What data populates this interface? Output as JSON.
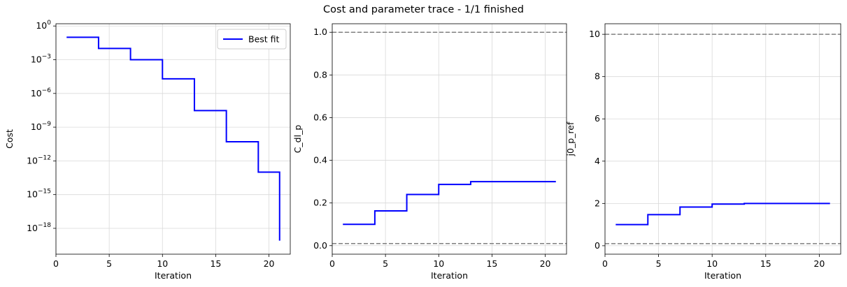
{
  "suptitle": "Cost and parameter trace - 1/1 finished",
  "chart_data": [
    {
      "type": "line",
      "line_shape": "step",
      "title": "",
      "xlabel": "Iteration",
      "ylabel": "Cost",
      "yscale": "log",
      "xlim": [
        0,
        22
      ],
      "ylim_exp": [
        -20.3,
        0.2
      ],
      "xticks": [
        0,
        5,
        10,
        15,
        20
      ],
      "yticks_exp": [
        0,
        -3,
        -6,
        -9,
        -12,
        -15,
        -18
      ],
      "grid": true,
      "legend": {
        "position": "top-right",
        "entries": [
          "Best fit"
        ]
      },
      "series": [
        {
          "name": "Best fit",
          "color": "#0000ff",
          "x": [
            1,
            4,
            7,
            10,
            13,
            16,
            19,
            21
          ],
          "y": [
            0.1,
            0.01,
            0.001,
            2e-05,
            3e-08,
            5e-11,
            1e-13,
            8e-20
          ]
        }
      ],
      "hlines": []
    },
    {
      "type": "line",
      "line_shape": "step",
      "title": "",
      "xlabel": "Iteration",
      "ylabel": "C_dl_p",
      "yscale": "linear",
      "xlim": [
        0,
        22
      ],
      "ylim": [
        -0.04,
        1.04
      ],
      "xticks": [
        0,
        5,
        10,
        15,
        20
      ],
      "yticks": [
        0.0,
        0.2,
        0.4,
        0.6,
        0.8,
        1.0
      ],
      "ytick_labels": [
        "0.0",
        "0.2",
        "0.4",
        "0.6",
        "0.8",
        "1.0"
      ],
      "grid": true,
      "series": [
        {
          "color": "#0000ff",
          "x": [
            1,
            4,
            7,
            10,
            13,
            21
          ],
          "y": [
            0.1,
            0.163,
            0.24,
            0.287,
            0.3,
            0.3
          ]
        }
      ],
      "hlines": [
        {
          "y": 0.01,
          "color": "#808080",
          "style": "dashed"
        },
        {
          "y": 1.0,
          "color": "#808080",
          "style": "dashed"
        }
      ]
    },
    {
      "type": "line",
      "line_shape": "step",
      "title": "",
      "xlabel": "Iteration",
      "ylabel": "j0_p_ref",
      "yscale": "linear",
      "xlim": [
        0,
        22
      ],
      "ylim": [
        -0.4,
        10.5
      ],
      "xticks": [
        0,
        5,
        10,
        15,
        20
      ],
      "yticks": [
        0,
        2,
        4,
        6,
        8,
        10
      ],
      "ytick_labels": [
        "0",
        "2",
        "4",
        "6",
        "8",
        "10"
      ],
      "grid": true,
      "series": [
        {
          "color": "#0000ff",
          "x": [
            1,
            4,
            7,
            10,
            13,
            21
          ],
          "y": [
            1.0,
            1.47,
            1.83,
            1.97,
            2.0,
            2.0
          ]
        }
      ],
      "hlines": [
        {
          "y": 0.1,
          "color": "#808080",
          "style": "dashed"
        },
        {
          "y": 10.0,
          "color": "#808080",
          "style": "dashed"
        }
      ]
    }
  ]
}
